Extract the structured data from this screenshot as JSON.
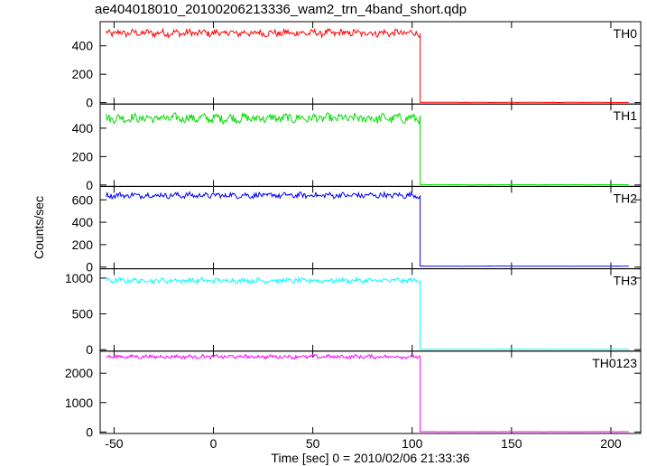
{
  "chart_data": {
    "type": "line",
    "title": "ae404018010_20100206213336_wam2_trn_4band_short.qdp",
    "xlabel": "Time [sec] 0 = 2010/02/06 21:33:36",
    "ylabel": "Counts/sec",
    "xlim": [
      -57,
      215
    ],
    "xticks": [
      -50,
      0,
      50,
      100,
      150,
      200
    ],
    "drop_time": 104,
    "end_time": 210,
    "start_time": -54,
    "panels": [
      {
        "name": "TH0",
        "ylim": [
          -10,
          570
        ],
        "yticks": [
          0,
          200,
          400
        ],
        "level_before": 490,
        "noise": 22,
        "level_after": 2,
        "color": "#ff0000"
      },
      {
        "name": "TH1",
        "ylim": [
          -10,
          570
        ],
        "yticks": [
          0,
          200,
          400
        ],
        "level_before": 470,
        "noise": 28,
        "level_after": 2,
        "color": "#00dd00"
      },
      {
        "name": "TH2",
        "ylim": [
          -15,
          720
        ],
        "yticks": [
          0,
          200,
          400,
          600
        ],
        "level_before": 640,
        "noise": 22,
        "level_after": 8,
        "color": "#0000ff"
      },
      {
        "name": "TH3",
        "ylim": [
          -20,
          1130
        ],
        "yticks": [
          0,
          500,
          1000
        ],
        "level_before": 965,
        "noise": 30,
        "level_after": 5,
        "color": "#00ffff"
      },
      {
        "name": "TH0123",
        "ylim": [
          -50,
          2750
        ],
        "yticks": [
          0,
          1000,
          2000
        ],
        "level_before": 2560,
        "noise": 55,
        "level_after": 10,
        "color": "#ff00ff"
      }
    ]
  }
}
